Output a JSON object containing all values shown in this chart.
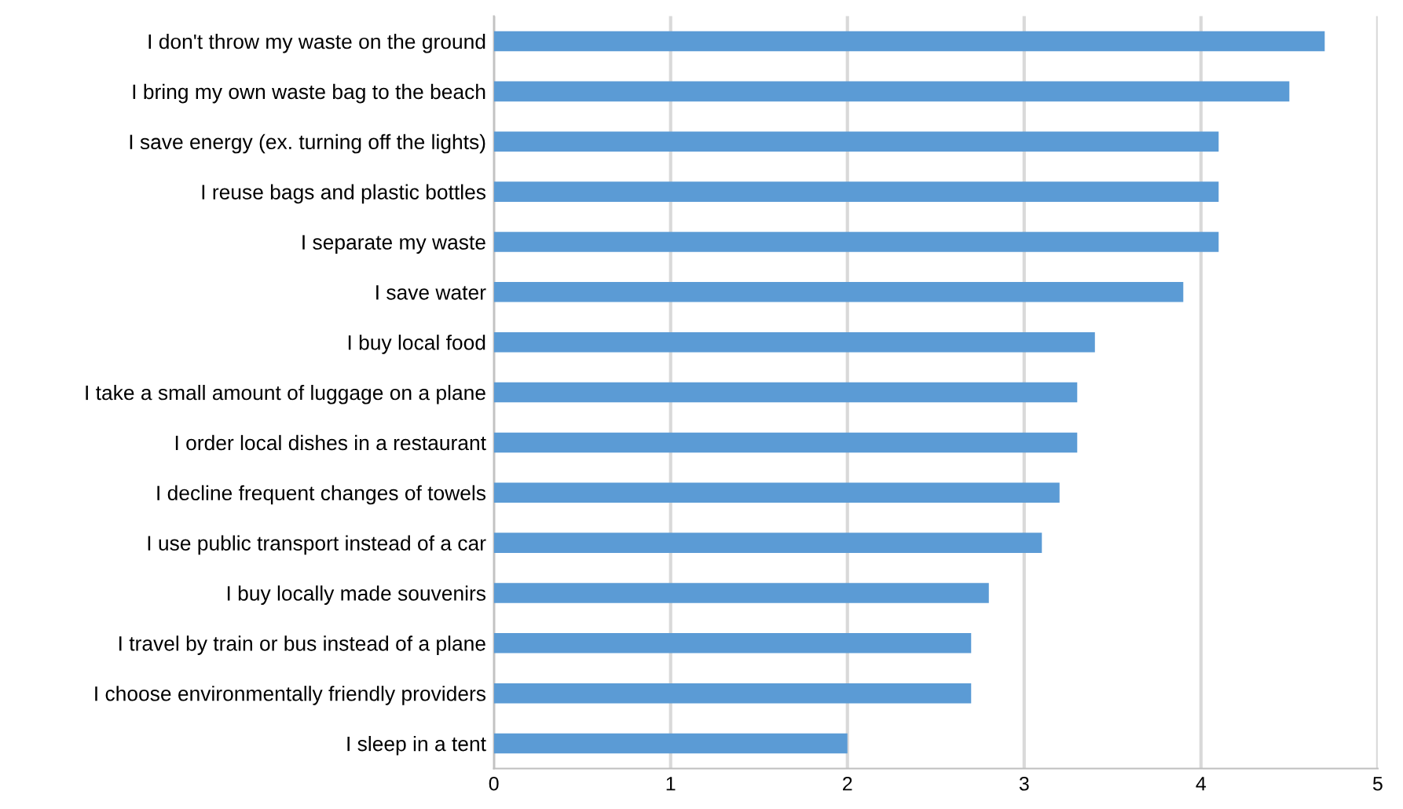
{
  "chart_data": {
    "type": "bar",
    "orientation": "horizontal",
    "categories": [
      "I don't throw my waste on the ground",
      "I bring my own waste bag to the beach",
      "I save energy (ex. turning off the lights)",
      "I reuse bags and plastic bottles",
      "I separate my waste",
      "I save water",
      "I buy local food",
      "I take a small amount of luggage on a plane",
      "I order local dishes in a restaurant",
      "I decline frequent changes of towels",
      "I use public transport instead of a car",
      "I buy locally made souvenirs",
      "I travel by train or bus instead of a plane",
      "I choose environmentally friendly providers",
      "I sleep in a tent"
    ],
    "values": [
      4.7,
      4.5,
      4.1,
      4.1,
      4.1,
      3.9,
      3.4,
      3.3,
      3.3,
      3.2,
      3.1,
      2.8,
      2.7,
      2.7,
      2.0
    ],
    "color": "#5b9bd5",
    "xlim": [
      0,
      5
    ],
    "xticks": [
      0,
      1,
      2,
      3,
      4,
      5
    ],
    "grid": "x"
  }
}
